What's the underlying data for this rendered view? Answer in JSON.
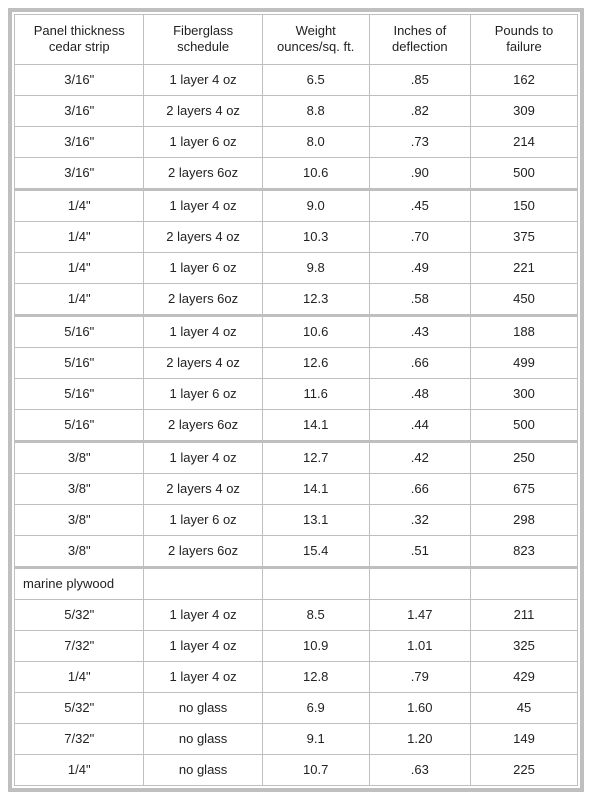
{
  "columns": [
    "Panel thickness cedar strip",
    "Fiberglass schedule",
    "Weight ounces/sq. ft.",
    "Inches of deflection",
    "Pounds to failure"
  ],
  "groups": [
    {
      "label": null,
      "rows": [
        [
          "3/16\"",
          "1 layer 4 oz",
          "6.5",
          ".85",
          "162"
        ],
        [
          "3/16\"",
          "2 layers 4 oz",
          "8.8",
          ".82",
          "309"
        ],
        [
          "3/16\"",
          "1 layer 6 oz",
          "8.0",
          ".73",
          "214"
        ],
        [
          "3/16\"",
          "2 layers 6oz",
          "10.6",
          ".90",
          "500"
        ]
      ]
    },
    {
      "label": null,
      "rows": [
        [
          "1/4\"",
          "1 layer 4 oz",
          "9.0",
          ".45",
          "150"
        ],
        [
          "1/4\"",
          "2 layers 4 oz",
          "10.3",
          ".70",
          "375"
        ],
        [
          "1/4\"",
          "1 layer 6 oz",
          "9.8",
          ".49",
          "221"
        ],
        [
          "1/4\"",
          "2 layers 6oz",
          "12.3",
          ".58",
          "450"
        ]
      ]
    },
    {
      "label": null,
      "rows": [
        [
          "5/16\"",
          "1 layer 4 oz",
          "10.6",
          ".43",
          "188"
        ],
        [
          "5/16\"",
          "2 layers 4 oz",
          "12.6",
          ".66",
          "499"
        ],
        [
          "5/16\"",
          "1 layer 6 oz",
          "11.6",
          ".48",
          "300"
        ],
        [
          "5/16\"",
          "2 layers 6oz",
          "14.1",
          ".44",
          "500"
        ]
      ]
    },
    {
      "label": null,
      "rows": [
        [
          "3/8\"",
          "1 layer 4 oz",
          "12.7",
          ".42",
          "250"
        ],
        [
          "3/8\"",
          "2 layers 4 oz",
          "14.1",
          ".66",
          "675"
        ],
        [
          "3/8\"",
          "1 layer 6 oz",
          "13.1",
          ".32",
          "298"
        ],
        [
          "3/8\"",
          "2 layers 6oz",
          "15.4",
          ".51",
          "823"
        ]
      ]
    },
    {
      "label": "marine plywood",
      "rows": [
        [
          "5/32\"",
          "1 layer 4 oz",
          "8.5",
          "1.47",
          "211"
        ],
        [
          "7/32\"",
          "1 layer 4 oz",
          "10.9",
          "1.01",
          "325"
        ],
        [
          "1/4\"",
          "1 layer 4 oz",
          "12.8",
          ".79",
          "429"
        ],
        [
          "5/32\"",
          "no glass",
          "6.9",
          "1.60",
          "45"
        ],
        [
          "7/32\"",
          "no glass",
          "9.1",
          "1.20",
          "149"
        ],
        [
          "1/4\"",
          "no glass",
          "10.7",
          ".63",
          "225"
        ]
      ]
    }
  ]
}
